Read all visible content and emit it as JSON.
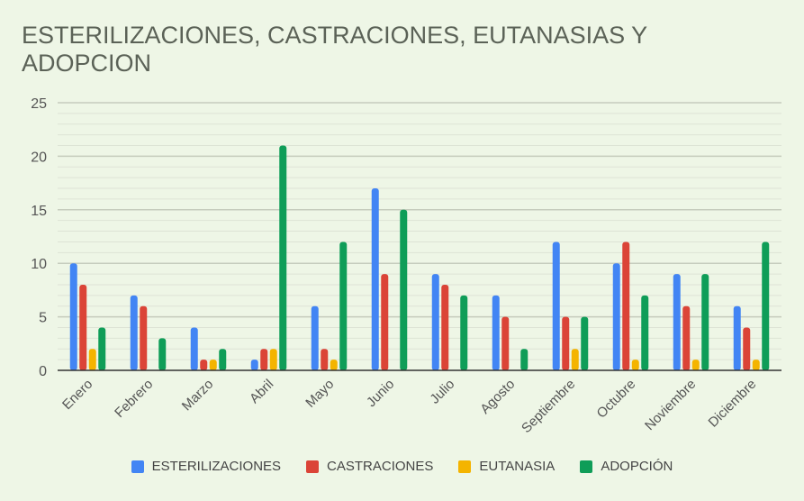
{
  "chart_data": {
    "type": "bar",
    "title": "ESTERILIZACIONES, CASTRACIONES, EUTANASIAS Y ADOPCION",
    "xlabel": "",
    "ylabel": "",
    "ylim": [
      0,
      25
    ],
    "yticks": [
      0,
      5,
      10,
      15,
      20,
      25
    ],
    "grid": true,
    "legend_position": "bottom",
    "categories": [
      "Enero",
      "Febrero",
      "Marzo",
      "Abril",
      "Mayo",
      "Junio",
      "Julio",
      "Agosto",
      "Septiembre",
      "Octubre",
      "Noviembre",
      "Diciembre"
    ],
    "series": [
      {
        "name": "ESTERILIZACIONES",
        "color": "#4285f4",
        "values": [
          10,
          7,
          4,
          1,
          6,
          17,
          9,
          7,
          12,
          10,
          9,
          6
        ]
      },
      {
        "name": "CASTRACIONES",
        "color": "#db4437",
        "values": [
          8,
          6,
          1,
          2,
          2,
          9,
          8,
          5,
          5,
          12,
          6,
          4
        ]
      },
      {
        "name": "EUTANASIA",
        "color": "#f4b400",
        "values": [
          2,
          0,
          1,
          2,
          1,
          0,
          0,
          0,
          2,
          1,
          1,
          1
        ]
      },
      {
        "name": "ADOPCIÓN",
        "color": "#0f9d58",
        "values": [
          4,
          3,
          2,
          21,
          12,
          15,
          7,
          2,
          5,
          7,
          9,
          12
        ]
      }
    ]
  }
}
